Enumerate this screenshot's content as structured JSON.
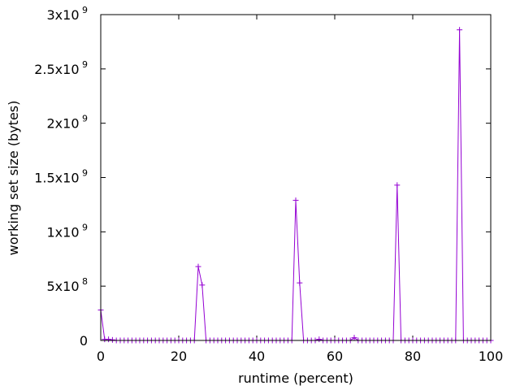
{
  "chart_data": {
    "type": "line",
    "title": "",
    "xlabel": "runtime (percent)",
    "ylabel": "working set size (bytes)",
    "xlim": [
      0,
      100
    ],
    "ylim": [
      0,
      3000000000
    ],
    "x_ticks": [
      {
        "value": 0,
        "label": "0"
      },
      {
        "value": 20,
        "label": "20"
      },
      {
        "value": 40,
        "label": "40"
      },
      {
        "value": 60,
        "label": "60"
      },
      {
        "value": 80,
        "label": "80"
      },
      {
        "value": 100,
        "label": "100"
      }
    ],
    "y_ticks": [
      {
        "value": 0,
        "mantissa": "0",
        "exp": ""
      },
      {
        "value": 500000000,
        "mantissa": "5x10",
        "exp": "8"
      },
      {
        "value": 1000000000,
        "mantissa": "1x10",
        "exp": "9"
      },
      {
        "value": 1500000000,
        "mantissa": "1.5x10",
        "exp": "9"
      },
      {
        "value": 2000000000,
        "mantissa": "2x10",
        "exp": "9"
      },
      {
        "value": 2500000000,
        "mantissa": "2.5x10",
        "exp": "9"
      },
      {
        "value": 3000000000,
        "mantissa": "3x10",
        "exp": "9"
      }
    ],
    "grid": false,
    "legend": "none",
    "series": [
      {
        "color": "#9400d3",
        "marker": "plus",
        "points": [
          [
            0,
            280000000
          ],
          [
            1,
            10000000
          ],
          [
            2,
            10000000
          ],
          [
            3,
            5000000
          ],
          [
            4,
            0
          ],
          [
            5,
            0
          ],
          [
            6,
            0
          ],
          [
            7,
            0
          ],
          [
            8,
            0
          ],
          [
            9,
            0
          ],
          [
            10,
            0
          ],
          [
            11,
            0
          ],
          [
            12,
            0
          ],
          [
            13,
            0
          ],
          [
            14,
            0
          ],
          [
            15,
            0
          ],
          [
            16,
            0
          ],
          [
            17,
            0
          ],
          [
            18,
            0
          ],
          [
            19,
            0
          ],
          [
            20,
            0
          ],
          [
            21,
            0
          ],
          [
            22,
            0
          ],
          [
            23,
            0
          ],
          [
            24,
            0
          ],
          [
            25,
            680000000
          ],
          [
            26,
            510000000
          ],
          [
            27,
            0
          ],
          [
            28,
            0
          ],
          [
            29,
            0
          ],
          [
            30,
            0
          ],
          [
            31,
            0
          ],
          [
            32,
            0
          ],
          [
            33,
            0
          ],
          [
            34,
            0
          ],
          [
            35,
            0
          ],
          [
            36,
            0
          ],
          [
            37,
            0
          ],
          [
            38,
            0
          ],
          [
            39,
            0
          ],
          [
            40,
            0
          ],
          [
            41,
            0
          ],
          [
            42,
            0
          ],
          [
            43,
            0
          ],
          [
            44,
            0
          ],
          [
            45,
            0
          ],
          [
            46,
            0
          ],
          [
            47,
            0
          ],
          [
            48,
            0
          ],
          [
            49,
            0
          ],
          [
            50,
            1290000000
          ],
          [
            51,
            530000000
          ],
          [
            52,
            0
          ],
          [
            53,
            0
          ],
          [
            54,
            0
          ],
          [
            55,
            0
          ],
          [
            56,
            10000000
          ],
          [
            57,
            0
          ],
          [
            58,
            0
          ],
          [
            59,
            0
          ],
          [
            60,
            0
          ],
          [
            61,
            0
          ],
          [
            62,
            0
          ],
          [
            63,
            0
          ],
          [
            64,
            0
          ],
          [
            65,
            25000000
          ],
          [
            66,
            0
          ],
          [
            67,
            0
          ],
          [
            68,
            0
          ],
          [
            69,
            0
          ],
          [
            70,
            0
          ],
          [
            71,
            0
          ],
          [
            72,
            0
          ],
          [
            73,
            0
          ],
          [
            74,
            0
          ],
          [
            75,
            0
          ],
          [
            76,
            1430000000
          ],
          [
            77,
            0
          ],
          [
            78,
            0
          ],
          [
            79,
            0
          ],
          [
            80,
            0
          ],
          [
            81,
            0
          ],
          [
            82,
            0
          ],
          [
            83,
            0
          ],
          [
            84,
            0
          ],
          [
            85,
            0
          ],
          [
            86,
            0
          ],
          [
            87,
            0
          ],
          [
            88,
            0
          ],
          [
            89,
            0
          ],
          [
            90,
            0
          ],
          [
            91,
            0
          ],
          [
            92,
            2860000000
          ],
          [
            93,
            0
          ],
          [
            94,
            0
          ],
          [
            95,
            0
          ],
          [
            96,
            0
          ],
          [
            97,
            0
          ],
          [
            98,
            0
          ],
          [
            99,
            0
          ],
          [
            100,
            0
          ]
        ]
      }
    ]
  }
}
